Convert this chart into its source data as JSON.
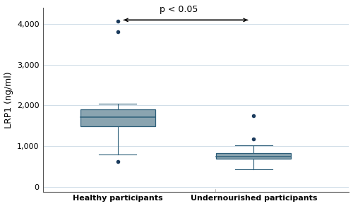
{
  "groups": [
    "Healthy participants",
    "Undernourished participants"
  ],
  "healthy": {
    "q1": 1480,
    "median": 1720,
    "q3": 1900,
    "whisker_low": 800,
    "whisker_high": 2050,
    "outliers": [
      620,
      3820,
      4080
    ]
  },
  "undernourished": {
    "q1": 680,
    "median": 740,
    "q3": 820,
    "whisker_low": 430,
    "whisker_high": 1020,
    "outliers": [
      1180,
      1750
    ]
  },
  "ylabel": "LRP1 (ng/ml)",
  "ylim": [
    -120,
    4400
  ],
  "yticks": [
    0,
    1000,
    2000,
    3000,
    4000
  ],
  "yticklabels": [
    "0",
    "1,000",
    "2,000",
    "3,000",
    "4,000"
  ],
  "box_color": "#8aa4b0",
  "box_edge_color": "#2e5f7a",
  "whisker_color": "#2e5f7a",
  "outlier_color": "#1a3a5c",
  "grid_color": "#d0dde8",
  "annotation_text": "p < 0.05",
  "bg_color": "#ffffff"
}
